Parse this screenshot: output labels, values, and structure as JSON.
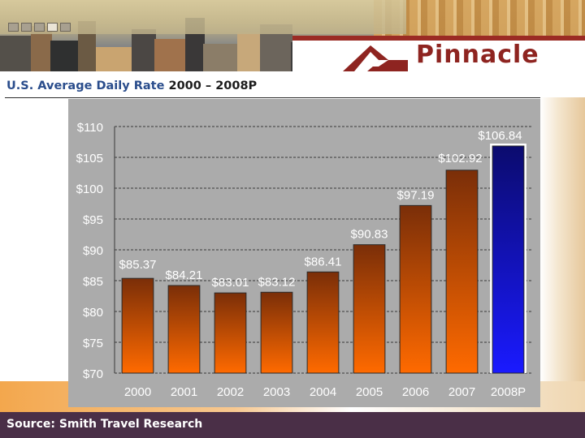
{
  "header": {
    "brand": "Pinnacle",
    "nav_dots": 5
  },
  "title": {
    "prefix": "U.S. Average Daily Rate ",
    "range": "2000 – 2008P"
  },
  "footer": {
    "source": "Source: Smith Travel Research"
  },
  "colors": {
    "title": "#2a4d8c",
    "brand": "#8e2420",
    "bar_top": "#7a2e08",
    "bar_bottom": "#ff6a00",
    "projected_top": "#0b0b6e",
    "projected_bottom": "#1a1aff",
    "plot_bg": "#ababab",
    "footer_bg": "#4a2f47"
  },
  "chart_data": {
    "type": "bar",
    "title": "U.S. Average Daily Rate 2000 – 2008P",
    "xlabel": "",
    "ylabel": "",
    "categories": [
      "2000",
      "2001",
      "2002",
      "2003",
      "2004",
      "2005",
      "2006",
      "2007",
      "2008P"
    ],
    "values": [
      85.37,
      84.21,
      83.01,
      83.12,
      86.41,
      90.83,
      97.19,
      102.92,
      106.84
    ],
    "labels": [
      "$85.37",
      "$84.21",
      "$83.01",
      "$83.12",
      "$86.41",
      "$90.83",
      "$97.19",
      "$102.92",
      "$106.84"
    ],
    "ylim": [
      70,
      110
    ],
    "yticks": [
      70,
      75,
      80,
      85,
      90,
      95,
      100,
      105,
      110
    ],
    "ytick_labels": [
      "$70",
      "$75",
      "$80",
      "$85",
      "$90",
      "$95",
      "$100",
      "$105",
      "$110"
    ],
    "projected": [
      "2008P"
    ],
    "grid": true,
    "grid_style": "dashed",
    "legend": "none"
  }
}
